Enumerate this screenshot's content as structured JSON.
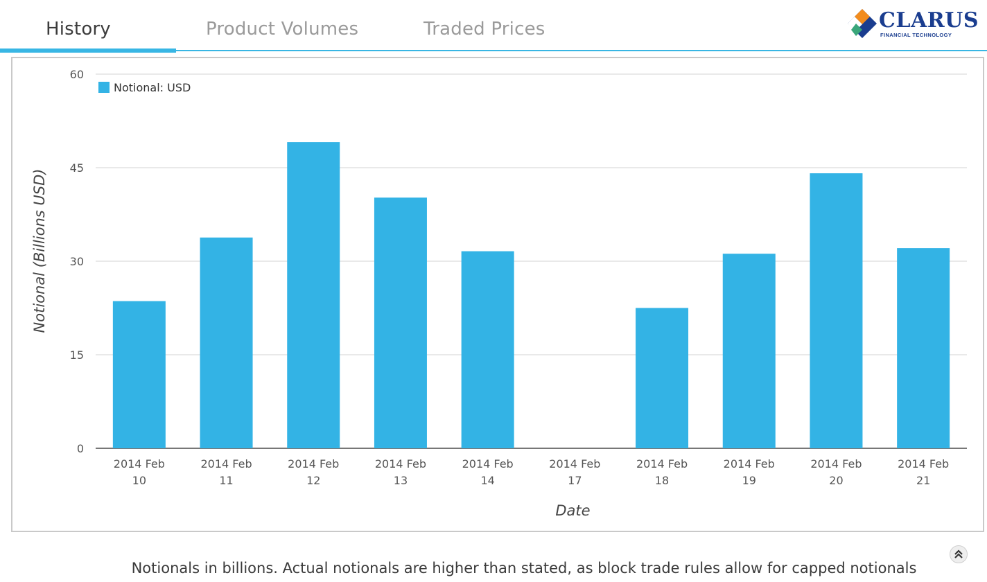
{
  "tabs": [
    {
      "label": "History",
      "active": true
    },
    {
      "label": "Product Volumes",
      "active": false
    },
    {
      "label": "Traded Prices",
      "active": false
    }
  ],
  "brand": {
    "name": "CLARUS",
    "tagline": "FINANCIAL TECHNOLOGY",
    "accent_color": "#38b6e4",
    "logo_colors": [
      "#f28c1e",
      "#1a3d8f",
      "#3aa67a"
    ]
  },
  "chart_data": {
    "type": "bar",
    "categories": [
      [
        "2014 Feb",
        "10"
      ],
      [
        "2014 Feb",
        "11"
      ],
      [
        "2014 Feb",
        "12"
      ],
      [
        "2014 Feb",
        "13"
      ],
      [
        "2014 Feb",
        "14"
      ],
      [
        "2014 Feb",
        "17"
      ],
      [
        "2014 Feb",
        "18"
      ],
      [
        "2014 Feb",
        "19"
      ],
      [
        "2014 Feb",
        "20"
      ],
      [
        "2014 Feb",
        "21"
      ]
    ],
    "series": [
      {
        "name": "Notional: USD",
        "color": "#33b3e5",
        "values": [
          23.6,
          33.8,
          49.1,
          40.2,
          31.6,
          0,
          22.5,
          31.2,
          44.1,
          32.1
        ]
      }
    ],
    "xlabel": "Date",
    "ylabel": "Notional (Billions USD)",
    "ylim": [
      0,
      60
    ],
    "yticks": [
      0,
      15,
      30,
      45,
      60
    ],
    "grid": true,
    "legend_position": "top-left"
  },
  "footer": {
    "note": "Notionals in billions. Actual notionals are higher than stated, as block trade rules allow for capped notionals",
    "scroll_icon": "double-chevron-up-icon"
  }
}
